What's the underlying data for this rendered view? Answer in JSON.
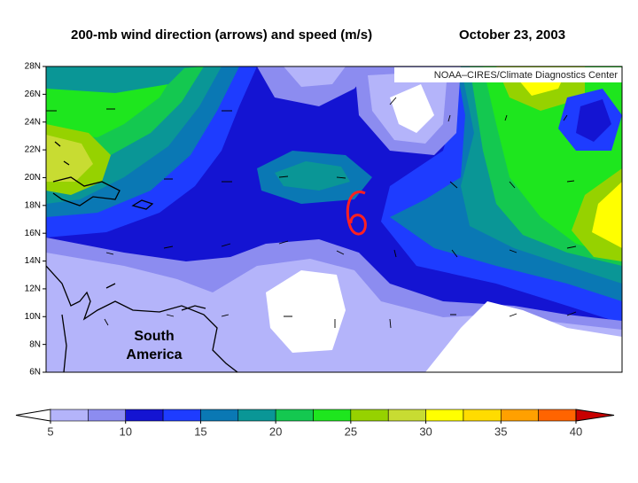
{
  "title": "200-mb wind direction (arrows) and speed (m/s)",
  "date": "October 23, 2003",
  "credit": "NOAA–CIRES/Climate Diagnostics Center",
  "map": {
    "lat_labels": [
      "28N",
      "26N",
      "24N",
      "22N",
      "20N",
      "18N",
      "16N",
      "14N",
      "12N",
      "10N",
      "8N",
      "6N"
    ],
    "region_label": [
      "South",
      "America"
    ]
  },
  "colorbar": {
    "lim": [
      5,
      40
    ],
    "ticks": [
      5,
      10,
      15,
      20,
      25,
      30,
      35,
      40
    ],
    "under_color": "#ffffff",
    "over_color": "#c80000",
    "colors": [
      "#b4b4fa",
      "#8c8cf0",
      "#1414d2",
      "#1e3cff",
      "#0a78b4",
      "#0a9696",
      "#14c850",
      "#1ee61e",
      "#96d200",
      "#c8dc32",
      "#ffff00",
      "#ffdc00",
      "#ffa000",
      "#ff6400"
    ]
  }
}
